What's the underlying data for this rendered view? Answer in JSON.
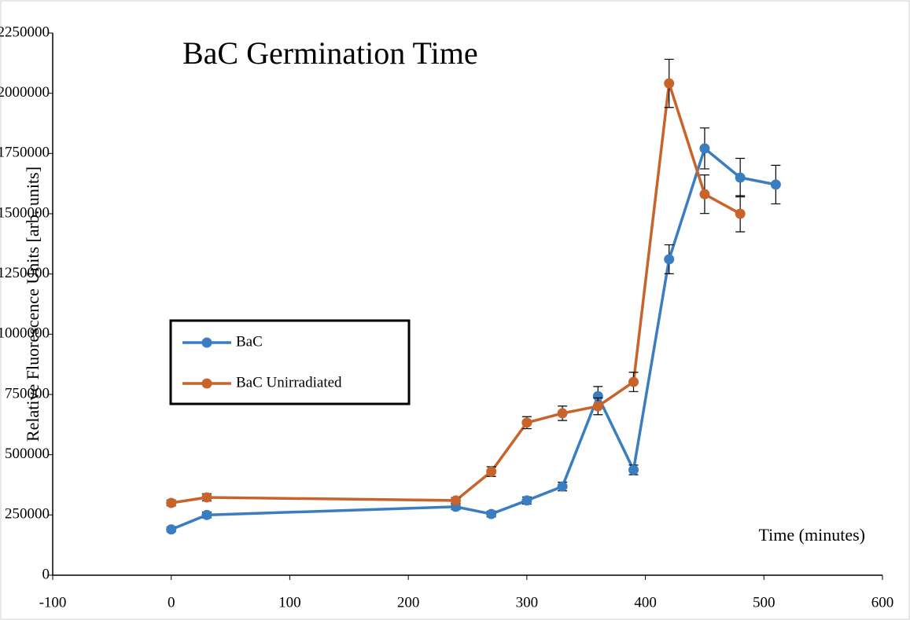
{
  "chart_data": {
    "type": "line",
    "title": "BaC Germination Time",
    "x_label": "Time (minutes)",
    "y_label": "Relative Fluorescence Units [arb. units]",
    "x": [
      0,
      30,
      240,
      270,
      300,
      330,
      360,
      390,
      420,
      450,
      480,
      510
    ],
    "series": [
      {
        "name": "BaC",
        "color": "#3a7dc0",
        "values": [
          190000,
          250000,
          284000,
          254000,
          310000,
          368000,
          743000,
          437000,
          1311000,
          1771000,
          1650000,
          1621000
        ],
        "errors": [
          10000,
          12000,
          12000,
          12000,
          15000,
          18000,
          40000,
          20000,
          60000,
          85000,
          80000,
          80000
        ]
      },
      {
        "name": "BaC Unirradiated",
        "color": "#c8642a",
        "values": [
          300000,
          323000,
          310000,
          430000,
          633000,
          672000,
          701000,
          802000,
          2041000,
          1581000,
          1500000,
          null
        ],
        "errors": [
          12000,
          15000,
          12000,
          20000,
          25000,
          30000,
          35000,
          40000,
          100000,
          80000,
          75000,
          null
        ]
      }
    ],
    "xlim": [
      -100,
      600
    ],
    "xticks": [
      -100,
      0,
      100,
      200,
      300,
      400,
      500,
      600
    ],
    "ylim": [
      0,
      2250000
    ],
    "yticks": [
      0,
      250000,
      500000,
      750000,
      1000000,
      1250000,
      1500000,
      1750000,
      2000000,
      2250000
    ],
    "legend": "left"
  }
}
